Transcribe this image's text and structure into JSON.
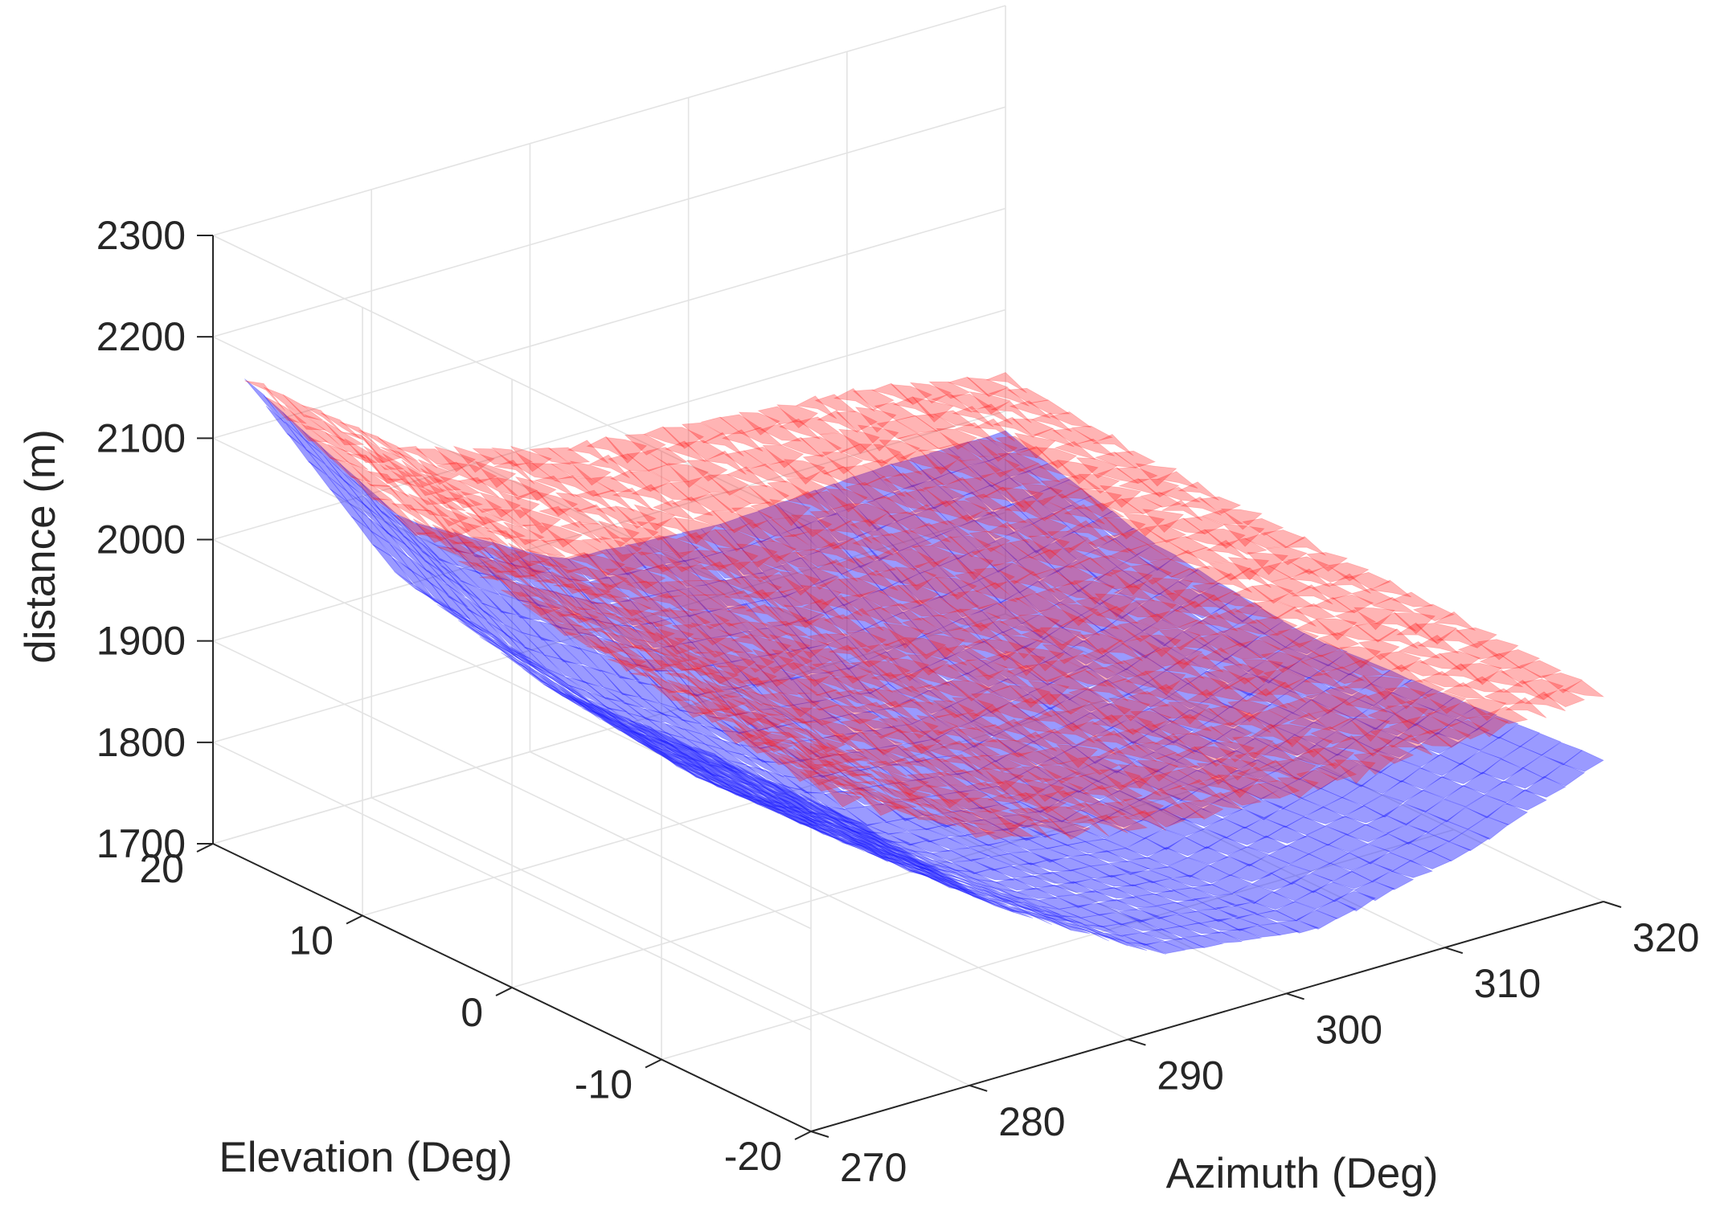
{
  "chart_data": {
    "type": "surface3d",
    "title": "",
    "xlabel": "Azimuth (Deg)",
    "ylabel": "Elevation (Deg)",
    "zlabel": "distance (m)",
    "xlim": [
      270,
      320
    ],
    "ylim": [
      -20,
      20
    ],
    "zlim": [
      1700,
      2300
    ],
    "x_ticks": [
      "270",
      "280",
      "290",
      "300",
      "310",
      "320"
    ],
    "y_ticks": [
      "-20",
      "-10",
      "0",
      "10",
      "20"
    ],
    "z_ticks": [
      "1700",
      "1800",
      "1900",
      "2000",
      "2100",
      "2200",
      "2300"
    ],
    "grid": true,
    "view": "3-D perspective, azimuth axis runs toward lower-right, elevation axis toward lower-left",
    "series": [
      {
        "name": "blue surface",
        "color": "#1a1aff",
        "opacity": 0.8,
        "azimuth": [
          272,
          282,
          292,
          302,
          312,
          320
        ],
        "elevation": [
          -20,
          -10,
          0,
          10,
          20
        ],
        "distance": [
          [
            2005,
            1865,
            1775,
            1755,
            1790,
            1840
          ],
          [
            2000,
            1855,
            1765,
            1745,
            1780,
            1830
          ],
          [
            1990,
            1850,
            1760,
            1738,
            1775,
            1822
          ],
          [
            2030,
            1885,
            1795,
            1775,
            1800,
            1840
          ],
          [
            2150,
            1965,
            1880,
            1870,
            1880,
            1880
          ]
        ]
      },
      {
        "name": "red surface",
        "color": "#ff1a1a",
        "opacity": 0.6,
        "azimuth": [
          272,
          282,
          292,
          302,
          312,
          320
        ],
        "elevation": [
          -20,
          -10,
          0,
          10,
          20
        ],
        "distance": [
          [
            2020,
            1935,
            1900,
            1895,
            1900,
            1905
          ],
          [
            2035,
            1950,
            1915,
            1905,
            1910,
            1912
          ],
          [
            2055,
            1975,
            1935,
            1920,
            1918,
            1915
          ],
          [
            2085,
            2000,
            1960,
            1945,
            1935,
            1920
          ],
          [
            2150,
            2035,
            1990,
            1975,
            1960,
            1935
          ]
        ]
      }
    ]
  }
}
